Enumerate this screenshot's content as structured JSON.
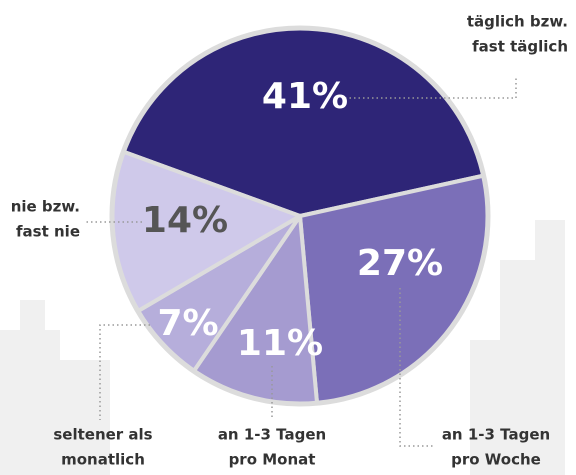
{
  "chart_data": {
    "type": "pie",
    "categories": [
      [
        "täglich bzw.",
        "fast täglich"
      ],
      [
        "an 1-3 Tagen",
        "pro Woche"
      ],
      [
        "an 1-3 Tagen",
        "pro Monat"
      ],
      [
        "seltener als",
        "monatlich"
      ],
      [
        "nie bzw.",
        "fast nie"
      ]
    ],
    "values": [
      41,
      27,
      11,
      7,
      14
    ],
    "value_labels": [
      "41%",
      "27%",
      "11%",
      "7%",
      "14%"
    ],
    "colors": [
      "#2e2577",
      "#7b6fb8",
      "#a59bd0",
      "#b6aedb",
      "#cfc9ea"
    ]
  }
}
